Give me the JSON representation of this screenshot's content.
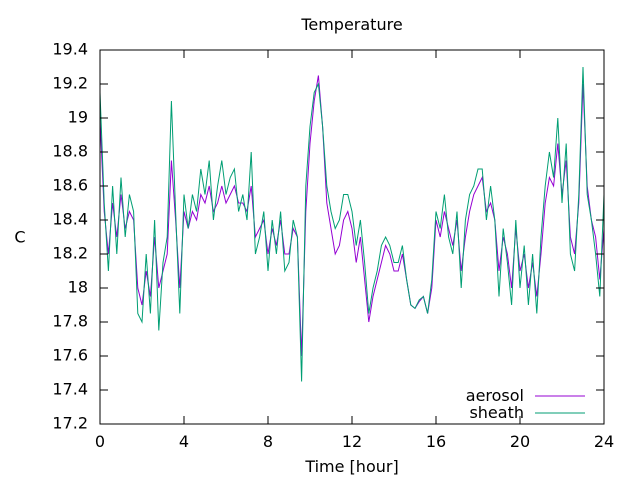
{
  "chart_data": {
    "type": "line",
    "title": "Temperature",
    "xlabel": "Time [hour]",
    "ylabel": "C",
    "xlim": [
      0,
      24
    ],
    "ylim": [
      17.2,
      19.4
    ],
    "xticks": [
      0,
      4,
      8,
      12,
      16,
      20,
      24
    ],
    "yticks": [
      17.2,
      17.4,
      17.6,
      17.8,
      18,
      18.2,
      18.4,
      18.6,
      18.8,
      19,
      19.2,
      19.4
    ],
    "ytick_labels": [
      "17.2",
      "17.4",
      "17.6",
      "17.8",
      "18",
      "18.2",
      "18.4",
      "18.6",
      "18.8",
      "19",
      "19.2",
      "19.4"
    ],
    "grid": false,
    "legend_position": "bottom-right",
    "series": [
      {
        "name": "aerosol",
        "color": "#9400d3",
        "x": [
          0,
          0.2,
          0.4,
          0.6,
          0.8,
          1,
          1.2,
          1.4,
          1.6,
          1.8,
          2,
          2.2,
          2.4,
          2.6,
          2.8,
          3,
          3.2,
          3.4,
          3.6,
          3.8,
          4,
          4.2,
          4.4,
          4.6,
          4.8,
          5,
          5.2,
          5.4,
          5.6,
          5.8,
          6,
          6.2,
          6.4,
          6.6,
          6.8,
          7,
          7.2,
          7.4,
          7.6,
          7.8,
          8,
          8.2,
          8.4,
          8.6,
          8.8,
          9,
          9.2,
          9.4,
          9.6,
          9.8,
          10,
          10.2,
          10.4,
          10.6,
          10.8,
          11,
          11.2,
          11.4,
          11.6,
          11.8,
          12,
          12.2,
          12.4,
          12.6,
          12.8,
          13,
          13.2,
          13.4,
          13.6,
          13.8,
          14,
          14.2,
          14.4,
          14.6,
          14.8,
          15,
          15.2,
          15.4,
          15.6,
          15.8,
          16,
          16.2,
          16.4,
          16.6,
          16.8,
          17,
          17.2,
          17.4,
          17.6,
          17.8,
          18,
          18.2,
          18.4,
          18.6,
          18.8,
          19,
          19.2,
          19.4,
          19.6,
          19.8,
          20,
          20.2,
          20.4,
          20.6,
          20.8,
          21,
          21.2,
          21.4,
          21.6,
          21.8,
          22,
          22.2,
          22.4,
          22.6,
          22.8,
          23,
          23.2,
          23.4,
          23.6,
          23.8,
          24
        ],
        "y": [
          19.0,
          18.45,
          18.2,
          18.5,
          18.3,
          18.55,
          18.35,
          18.45,
          18.4,
          18.0,
          17.9,
          18.1,
          17.95,
          18.3,
          18.0,
          18.1,
          18.2,
          18.75,
          18.4,
          18.0,
          18.45,
          18.35,
          18.45,
          18.4,
          18.55,
          18.5,
          18.6,
          18.45,
          18.5,
          18.6,
          18.5,
          18.55,
          18.6,
          18.5,
          18.5,
          18.45,
          18.6,
          18.3,
          18.35,
          18.4,
          18.2,
          18.35,
          18.25,
          18.4,
          18.2,
          18.2,
          18.35,
          18.3,
          17.6,
          18.45,
          18.85,
          19.1,
          19.25,
          18.95,
          18.5,
          18.35,
          18.2,
          18.25,
          18.4,
          18.45,
          18.35,
          18.15,
          18.3,
          18.05,
          17.8,
          17.95,
          18.05,
          18.15,
          18.25,
          18.2,
          18.1,
          18.1,
          18.2,
          18.05,
          17.9,
          17.88,
          17.92,
          17.95,
          17.85,
          18.0,
          18.4,
          18.3,
          18.45,
          18.35,
          18.25,
          18.4,
          18.1,
          18.3,
          18.45,
          18.55,
          18.6,
          18.65,
          18.45,
          18.5,
          18.4,
          18.1,
          18.3,
          18.2,
          18.0,
          18.35,
          18.1,
          18.2,
          18.0,
          18.15,
          17.95,
          18.2,
          18.5,
          18.65,
          18.6,
          18.85,
          18.55,
          18.75,
          18.3,
          18.2,
          18.5,
          19.2,
          18.6,
          18.4,
          18.3,
          18.05,
          18.35
        ]
      },
      {
        "name": "sheath",
        "color": "#009e73",
        "x": [
          0,
          0.2,
          0.4,
          0.6,
          0.8,
          1,
          1.2,
          1.4,
          1.6,
          1.8,
          2,
          2.2,
          2.4,
          2.6,
          2.8,
          3,
          3.2,
          3.4,
          3.6,
          3.8,
          4,
          4.2,
          4.4,
          4.6,
          4.8,
          5,
          5.2,
          5.4,
          5.6,
          5.8,
          6,
          6.2,
          6.4,
          6.6,
          6.8,
          7,
          7.2,
          7.4,
          7.6,
          7.8,
          8,
          8.2,
          8.4,
          8.6,
          8.8,
          9,
          9.2,
          9.4,
          9.6,
          9.8,
          10,
          10.2,
          10.4,
          10.6,
          10.8,
          11,
          11.2,
          11.4,
          11.6,
          11.8,
          12,
          12.2,
          12.4,
          12.6,
          12.8,
          13,
          13.2,
          13.4,
          13.6,
          13.8,
          14,
          14.2,
          14.4,
          14.6,
          14.8,
          15,
          15.2,
          15.4,
          15.6,
          15.8,
          16,
          16.2,
          16.4,
          16.6,
          16.8,
          17,
          17.2,
          17.4,
          17.6,
          17.8,
          18,
          18.2,
          18.4,
          18.6,
          18.8,
          19,
          19.2,
          19.4,
          19.6,
          19.8,
          20,
          20.2,
          20.4,
          20.6,
          20.8,
          21,
          21.2,
          21.4,
          21.6,
          21.8,
          22,
          22.2,
          22.4,
          22.6,
          22.8,
          23,
          23.2,
          23.4,
          23.6,
          23.8,
          24
        ],
        "y": [
          19.15,
          18.5,
          18.1,
          18.6,
          18.2,
          18.65,
          18.3,
          18.55,
          18.45,
          17.85,
          17.8,
          18.2,
          17.85,
          18.4,
          17.75,
          18.15,
          18.3,
          19.1,
          18.45,
          17.85,
          18.55,
          18.35,
          18.55,
          18.45,
          18.7,
          18.55,
          18.75,
          18.4,
          18.6,
          18.75,
          18.55,
          18.65,
          18.7,
          18.45,
          18.55,
          18.4,
          18.8,
          18.2,
          18.3,
          18.45,
          18.1,
          18.4,
          18.2,
          18.45,
          18.1,
          18.15,
          18.4,
          18.3,
          17.45,
          18.6,
          18.95,
          19.15,
          19.2,
          18.95,
          18.6,
          18.45,
          18.35,
          18.4,
          18.55,
          18.55,
          18.45,
          18.25,
          18.4,
          18.15,
          17.85,
          18.0,
          18.1,
          18.25,
          18.3,
          18.25,
          18.15,
          18.15,
          18.25,
          18.05,
          17.9,
          17.88,
          17.93,
          17.95,
          17.85,
          18.05,
          18.45,
          18.35,
          18.55,
          18.3,
          18.2,
          18.45,
          18.0,
          18.4,
          18.55,
          18.6,
          18.7,
          18.7,
          18.4,
          18.6,
          18.4,
          17.95,
          18.35,
          18.15,
          17.9,
          18.4,
          18.0,
          18.25,
          17.9,
          18.2,
          17.85,
          18.3,
          18.6,
          18.8,
          18.65,
          19.0,
          18.5,
          18.85,
          18.2,
          18.1,
          18.55,
          19.3,
          18.55,
          18.4,
          18.2,
          17.95,
          18.55
        ]
      }
    ]
  }
}
